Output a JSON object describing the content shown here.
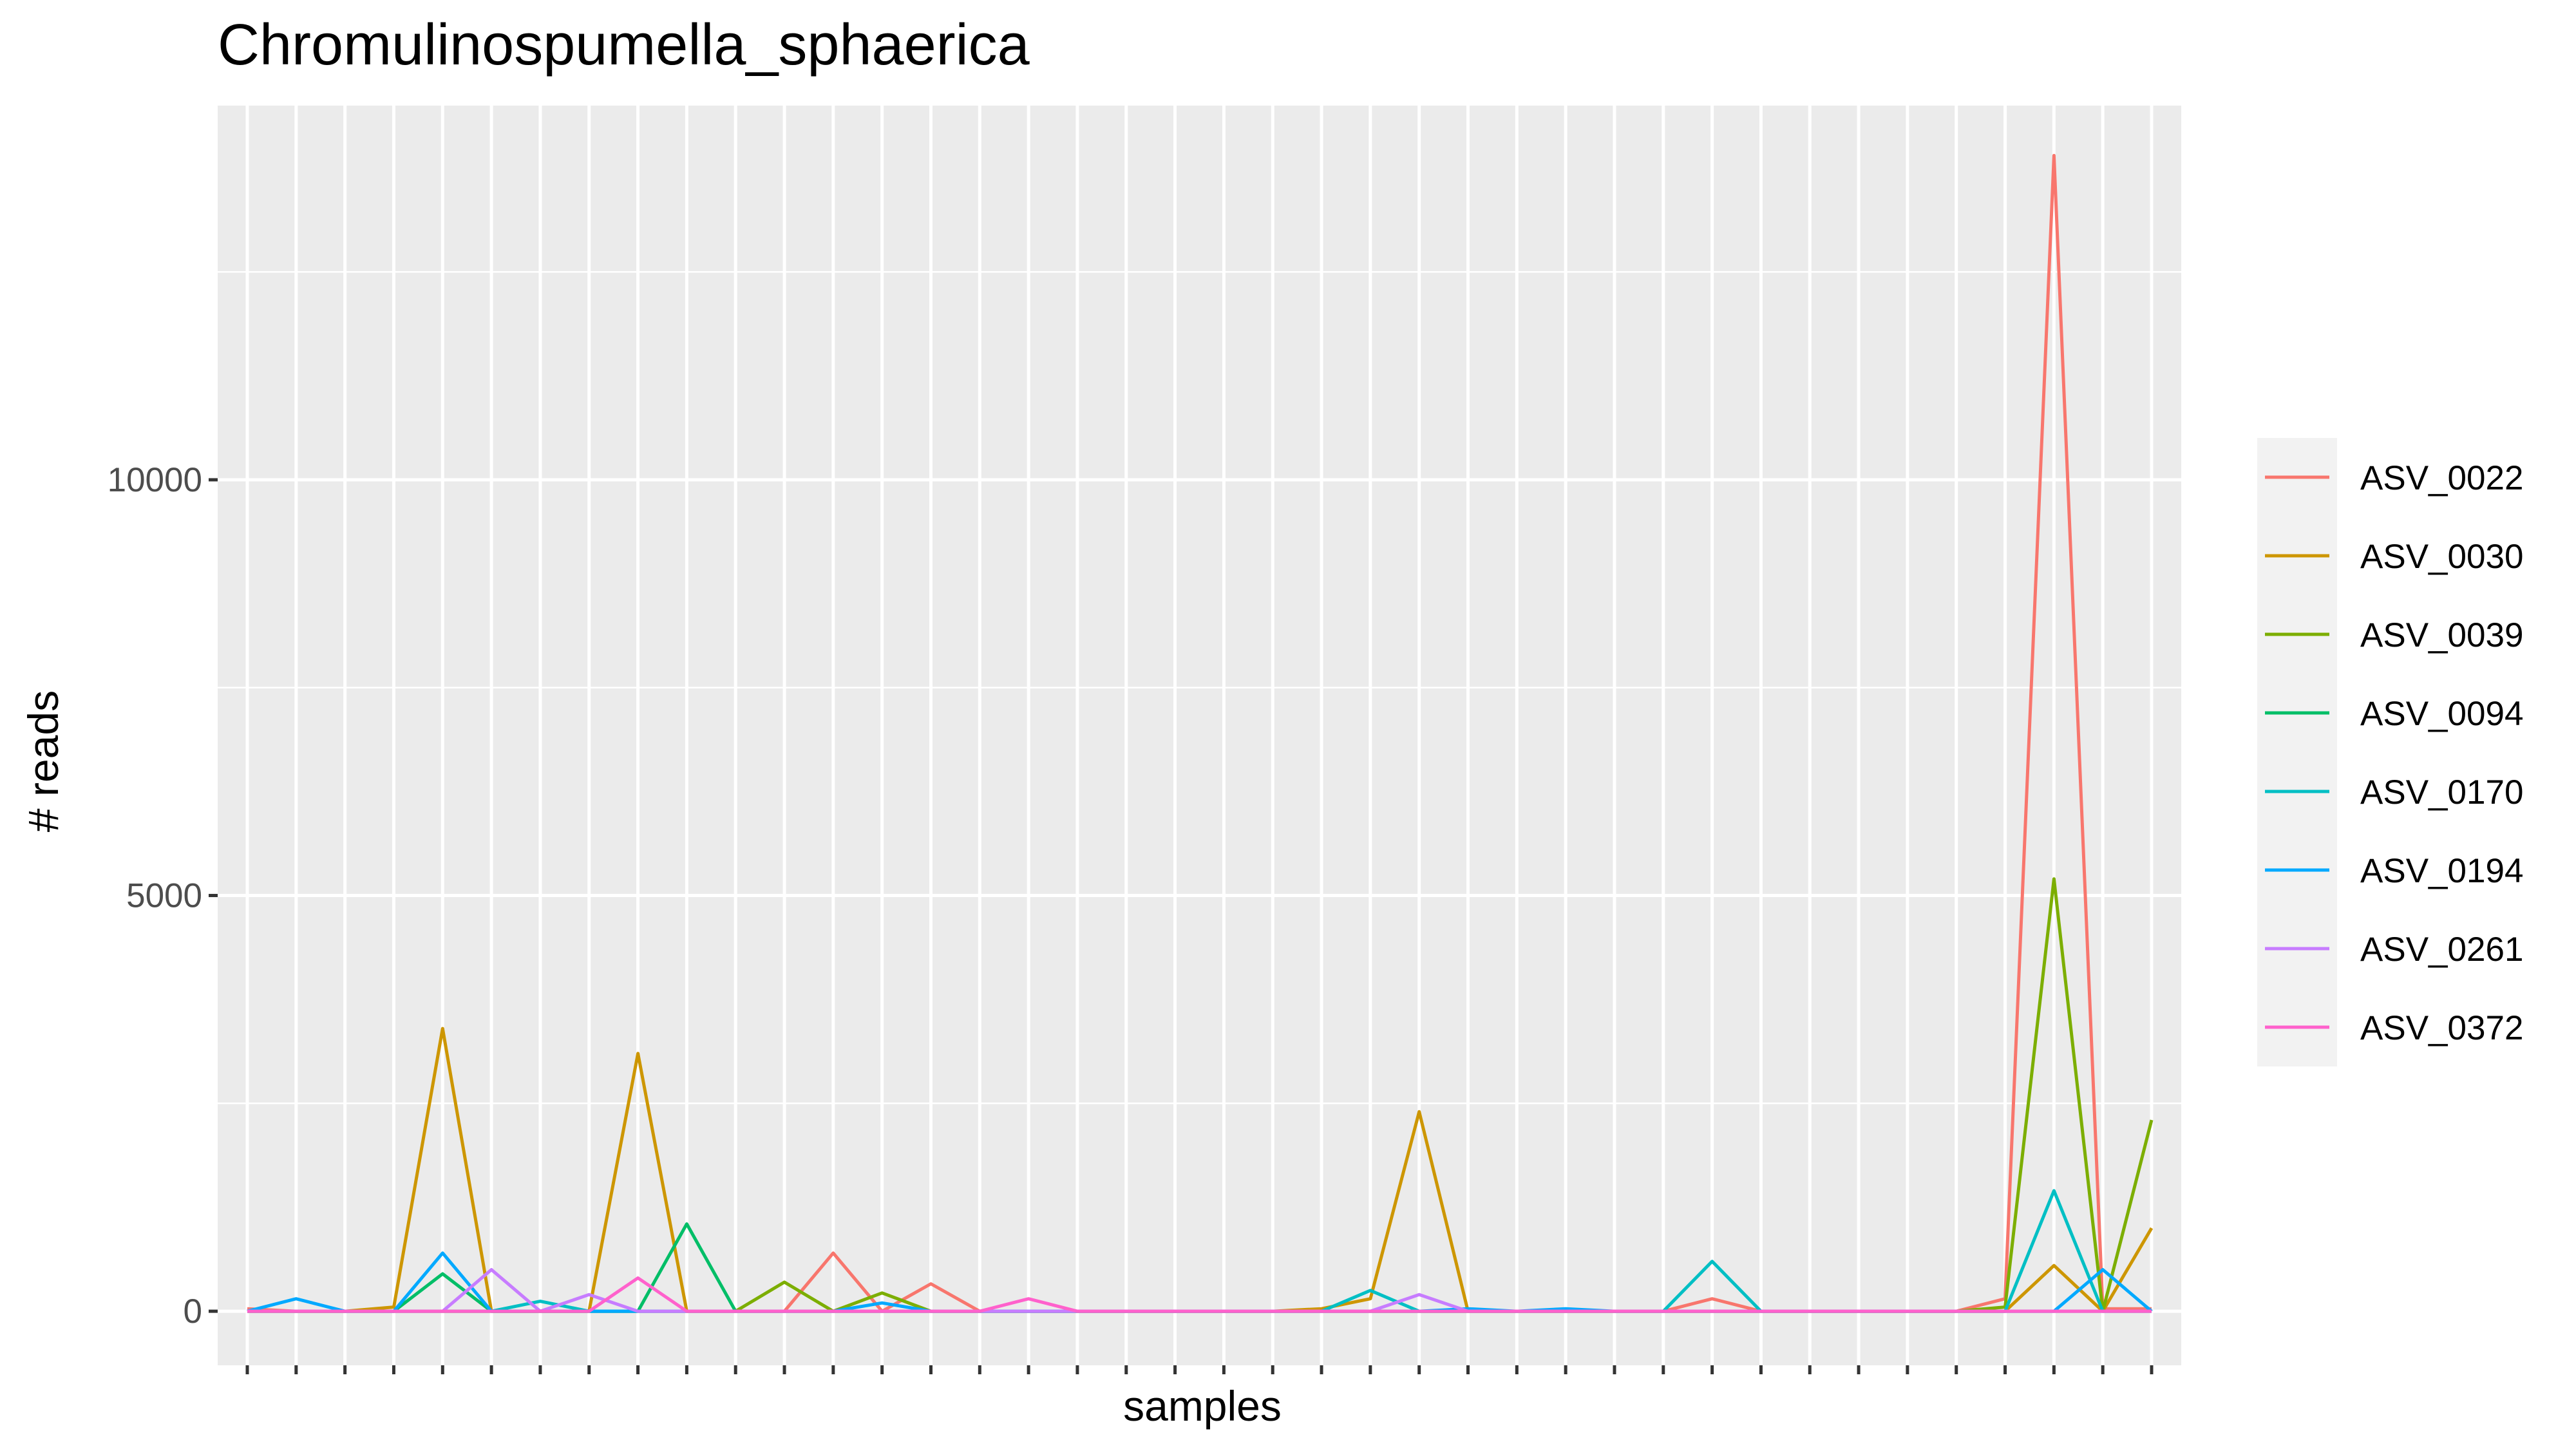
{
  "chart_data": {
    "type": "line",
    "title": "Chromulinospumella_sphaerica",
    "xlabel": "samples",
    "ylabel": "# reads",
    "yticks": [
      0,
      5000,
      10000
    ],
    "ylim": [
      -650,
      14500
    ],
    "n_samples": 40,
    "x_tick_labels_shown": false,
    "grid": true,
    "legend_position": "right",
    "series": [
      {
        "name": "ASV_0022",
        "color": "#F8766D",
        "values": [
          30,
          0,
          0,
          0,
          0,
          0,
          0,
          0,
          0,
          0,
          0,
          0,
          700,
          0,
          330,
          0,
          0,
          0,
          0,
          0,
          0,
          0,
          0,
          0,
          0,
          0,
          0,
          0,
          0,
          0,
          150,
          0,
          0,
          0,
          0,
          0,
          150,
          13900,
          30,
          30
        ]
      },
      {
        "name": "ASV_0030",
        "color": "#CD9600",
        "values": [
          0,
          0,
          0,
          50,
          3400,
          0,
          0,
          0,
          3100,
          0,
          0,
          0,
          0,
          0,
          0,
          0,
          0,
          0,
          0,
          0,
          0,
          0,
          30,
          150,
          2400,
          0,
          0,
          0,
          0,
          0,
          0,
          0,
          0,
          0,
          0,
          0,
          0,
          550,
          0,
          1000
        ]
      },
      {
        "name": "ASV_0039",
        "color": "#7CAE00",
        "values": [
          0,
          0,
          0,
          0,
          0,
          0,
          0,
          0,
          0,
          0,
          0,
          350,
          0,
          220,
          0,
          0,
          0,
          0,
          0,
          0,
          0,
          0,
          0,
          0,
          0,
          0,
          0,
          0,
          0,
          0,
          0,
          0,
          0,
          0,
          0,
          0,
          50,
          5200,
          0,
          2300
        ]
      },
      {
        "name": "ASV_0094",
        "color": "#00BE67",
        "values": [
          0,
          0,
          0,
          0,
          450,
          0,
          0,
          0,
          0,
          1050,
          0,
          0,
          0,
          0,
          0,
          0,
          0,
          0,
          0,
          0,
          0,
          0,
          0,
          0,
          0,
          0,
          0,
          0,
          0,
          0,
          0,
          0,
          0,
          0,
          0,
          0,
          0,
          0,
          0,
          0
        ]
      },
      {
        "name": "ASV_0170",
        "color": "#00BFC4",
        "values": [
          0,
          0,
          0,
          0,
          0,
          0,
          120,
          0,
          0,
          0,
          0,
          0,
          0,
          0,
          0,
          0,
          0,
          0,
          0,
          0,
          0,
          0,
          0,
          250,
          0,
          0,
          0,
          0,
          0,
          0,
          600,
          0,
          0,
          0,
          0,
          0,
          0,
          1450,
          0,
          0
        ]
      },
      {
        "name": "ASV_0194",
        "color": "#00A9FF",
        "values": [
          0,
          150,
          0,
          0,
          700,
          0,
          0,
          0,
          0,
          0,
          0,
          0,
          0,
          100,
          0,
          0,
          0,
          0,
          0,
          0,
          0,
          0,
          0,
          0,
          0,
          30,
          0,
          30,
          0,
          0,
          0,
          0,
          0,
          0,
          0,
          0,
          0,
          0,
          500,
          0
        ]
      },
      {
        "name": "ASV_0261",
        "color": "#C77CFF",
        "values": [
          0,
          0,
          0,
          0,
          0,
          500,
          0,
          200,
          0,
          0,
          0,
          0,
          0,
          0,
          0,
          0,
          0,
          0,
          0,
          0,
          0,
          0,
          0,
          0,
          200,
          0,
          0,
          0,
          0,
          0,
          0,
          0,
          0,
          0,
          0,
          0,
          0,
          0,
          0,
          0
        ]
      },
      {
        "name": "ASV_0372",
        "color": "#FF61CC",
        "values": [
          0,
          0,
          0,
          0,
          0,
          0,
          0,
          0,
          400,
          0,
          0,
          0,
          0,
          0,
          0,
          0,
          150,
          0,
          0,
          0,
          0,
          0,
          0,
          0,
          0,
          0,
          0,
          0,
          0,
          0,
          0,
          0,
          0,
          0,
          0,
          0,
          0,
          0,
          0,
          0
        ]
      }
    ]
  }
}
